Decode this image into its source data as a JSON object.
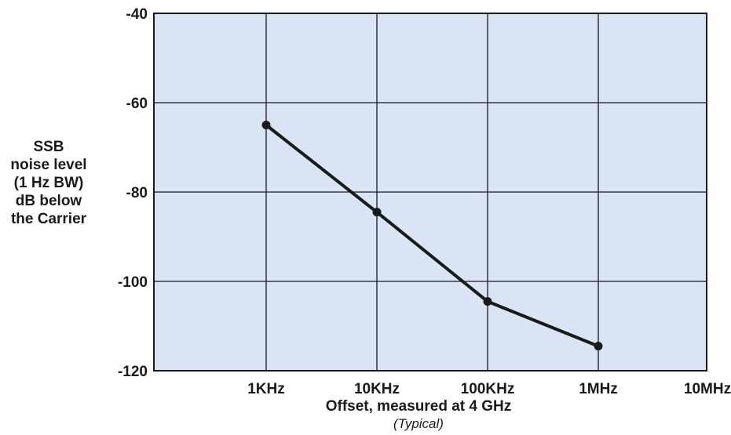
{
  "chart_data": {
    "type": "line",
    "title": "",
    "xlabel": "Offset, measured at 4 GHz",
    "xlabel_sub": "(Typical)",
    "ylabel_lines": [
      "SSB",
      "noise level",
      "(1 Hz BW)",
      "dB below",
      "the Carrier"
    ],
    "x_scale": "log",
    "x_ticks": [
      "1KHz",
      "10KHz",
      "100KHz",
      "1MHz",
      "10MHz"
    ],
    "y_ticks": [
      "-40",
      "-60",
      "-80",
      "-100",
      "-120"
    ],
    "ylim": [
      -120,
      -40
    ],
    "grid": true,
    "series": [
      {
        "x": [
          "1KHz",
          "10KHz",
          "100KHz",
          "1MHz"
        ],
        "values": [
          -65,
          -84.5,
          -104.5,
          -114.5
        ]
      }
    ]
  },
  "colors": {
    "plot_background": "#d9e4f5",
    "grid": "#1a1a1a",
    "line": "#1a1a1a"
  }
}
